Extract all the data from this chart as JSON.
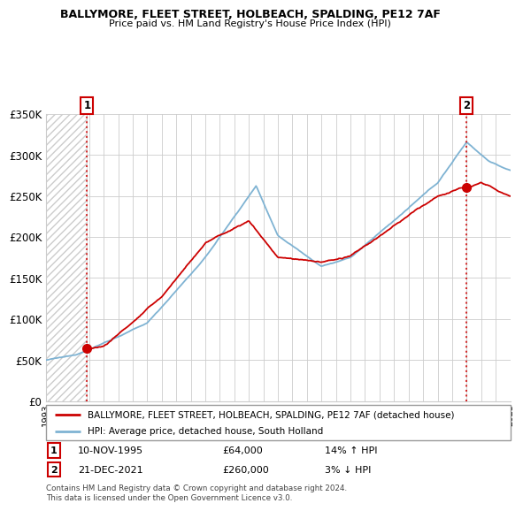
{
  "title1": "BALLYMORE, FLEET STREET, HOLBEACH, SPALDING, PE12 7AF",
  "title2": "Price paid vs. HM Land Registry's House Price Index (HPI)",
  "legend_line1": "BALLYMORE, FLEET STREET, HOLBEACH, SPALDING, PE12 7AF (detached house)",
  "legend_line2": "HPI: Average price, detached house, South Holland",
  "annotation1": {
    "num": "1",
    "date": "10-NOV-1995",
    "price": "£64,000",
    "pct": "14% ↑ HPI"
  },
  "annotation2": {
    "num": "2",
    "date": "21-DEC-2021",
    "price": "£260,000",
    "pct": "3% ↓ HPI"
  },
  "footer": "Contains HM Land Registry data © Crown copyright and database right 2024.\nThis data is licensed under the Open Government Licence v3.0.",
  "sale1_year": 1995.86,
  "sale1_price": 64000,
  "sale2_year": 2021.97,
  "sale2_price": 260000,
  "hpi_color": "#7fb3d3",
  "sale_color": "#cc0000",
  "marker_color": "#cc0000",
  "grid_color": "#cccccc",
  "ymin": 0,
  "ymax": 350000,
  "xmin": 1993,
  "xmax": 2025
}
